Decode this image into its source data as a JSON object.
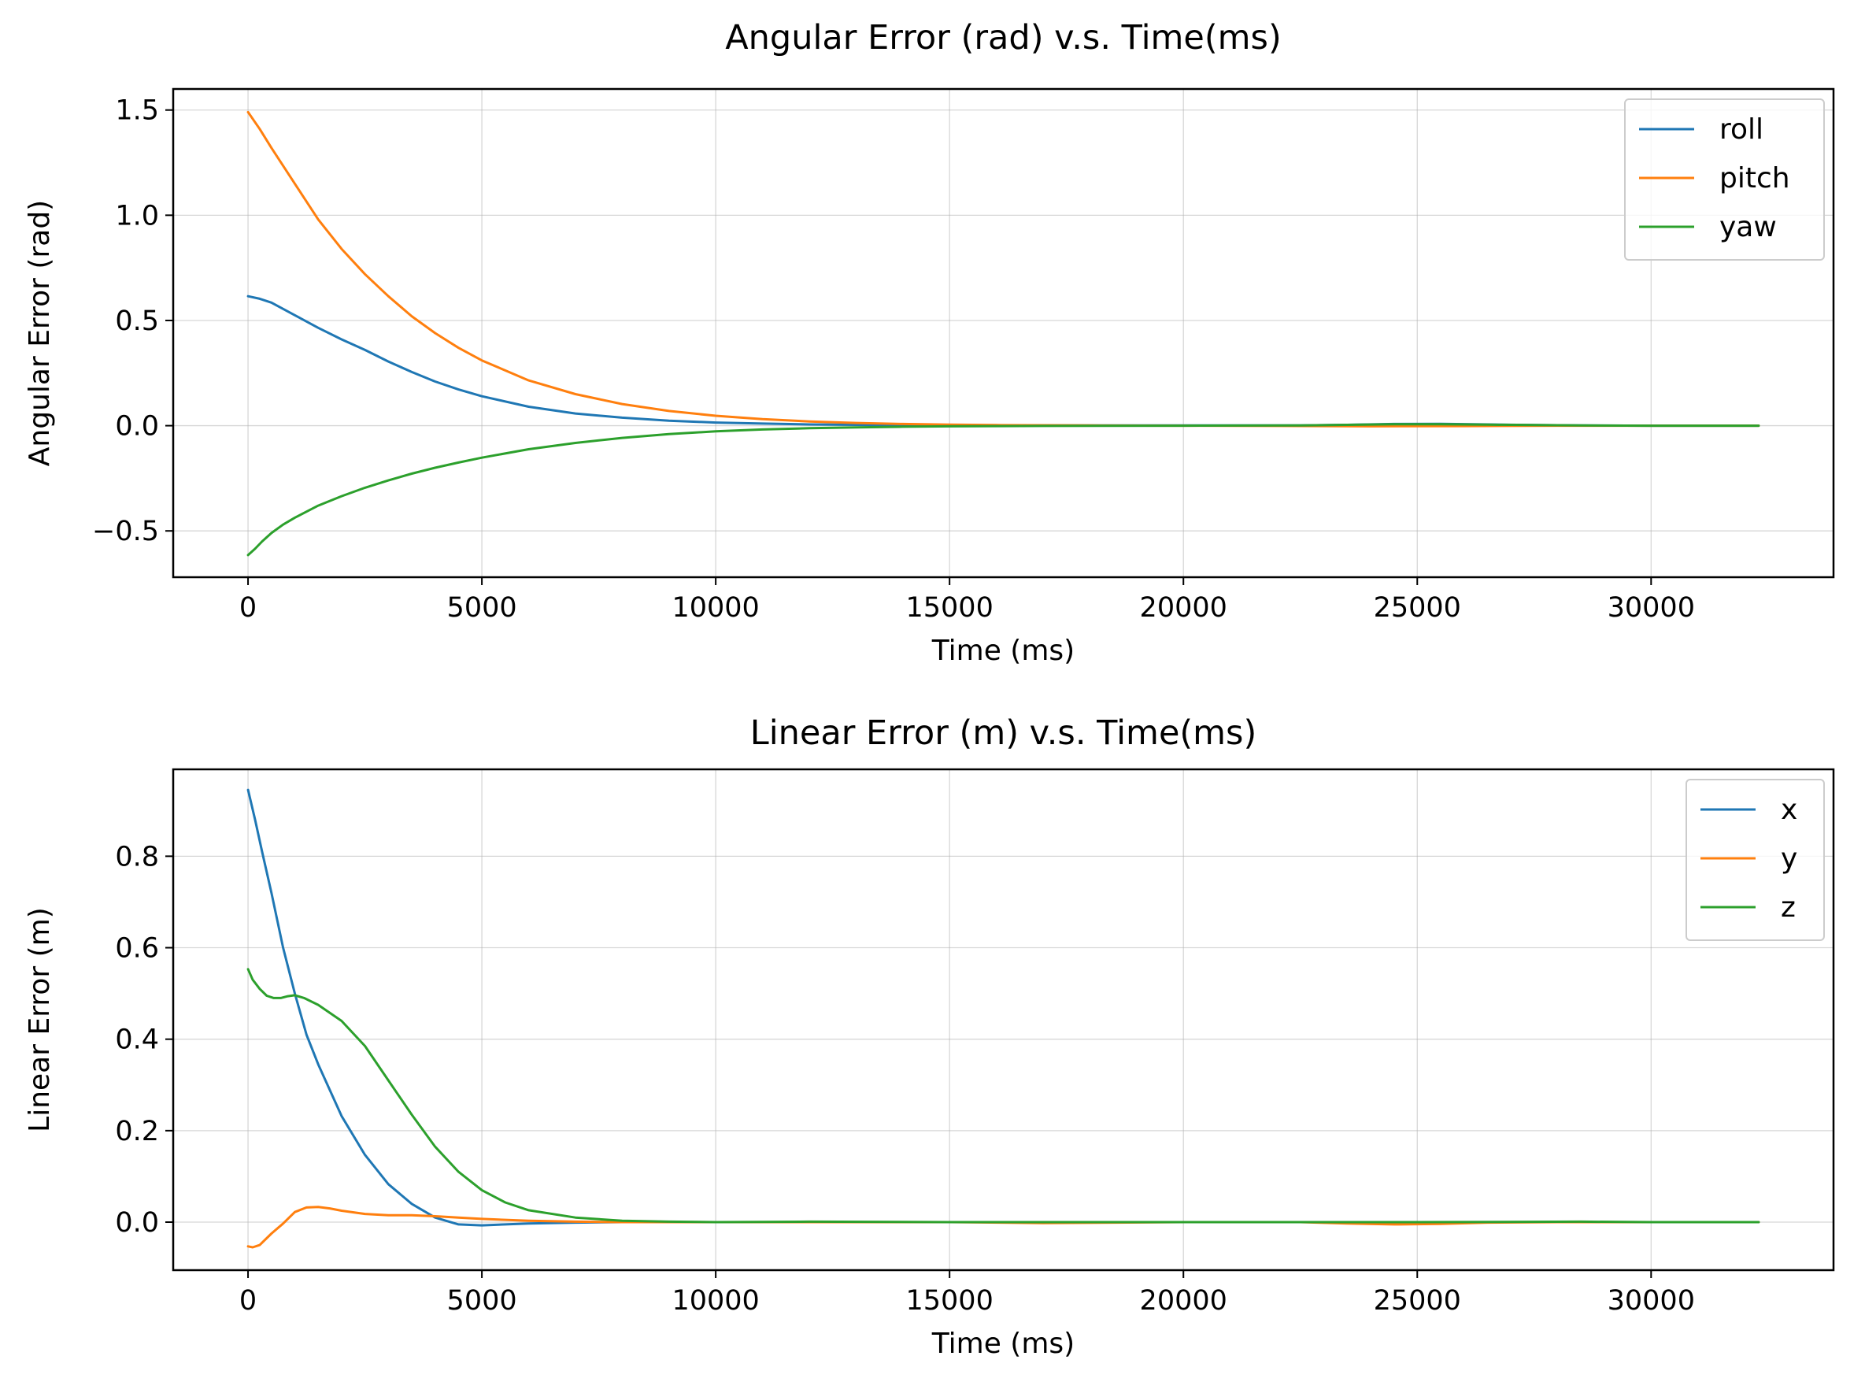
{
  "chart_data": [
    {
      "id": "angular",
      "type": "line",
      "title": "Angular Error (rad) v.s. Time(ms)",
      "xlabel": "Time (ms)",
      "ylabel": "Angular Error (rad)",
      "xlim": [
        -1600,
        33900
      ],
      "ylim": [
        -0.72,
        1.6
      ],
      "xticks": [
        0,
        5000,
        10000,
        15000,
        20000,
        25000,
        30000
      ],
      "yticks": [
        -0.5,
        0.0,
        0.5,
        1.0,
        1.5
      ],
      "ytick_labels": [
        "−0.5",
        "0.0",
        "0.5",
        "1.0",
        "1.5"
      ],
      "grid": true,
      "legend": "top-right",
      "series": [
        {
          "name": "roll",
          "color": "#1f77b4",
          "points": [
            [
              0,
              0.615
            ],
            [
              250,
              0.603
            ],
            [
              500,
              0.585
            ],
            [
              1000,
              0.525
            ],
            [
              1500,
              0.465
            ],
            [
              2000,
              0.41
            ],
            [
              2500,
              0.36
            ],
            [
              3000,
              0.305
            ],
            [
              3500,
              0.255
            ],
            [
              4000,
              0.21
            ],
            [
              4500,
              0.172
            ],
            [
              5000,
              0.14
            ],
            [
              6000,
              0.09
            ],
            [
              7000,
              0.058
            ],
            [
              8000,
              0.038
            ],
            [
              9000,
              0.024
            ],
            [
              10000,
              0.015
            ],
            [
              11000,
              0.01
            ],
            [
              12000,
              0.006
            ],
            [
              13000,
              0.004
            ],
            [
              14000,
              0.003
            ],
            [
              15000,
              0.002
            ],
            [
              16000,
              0.002
            ],
            [
              18000,
              0.001
            ],
            [
              20000,
              0.001
            ],
            [
              22500,
              0.001
            ],
            [
              23500,
              0.004
            ],
            [
              24500,
              0.008
            ],
            [
              25500,
              0.009
            ],
            [
              26500,
              0.006
            ],
            [
              27500,
              0.003
            ],
            [
              28500,
              0.001
            ],
            [
              30000,
              0.0
            ],
            [
              32300,
              0.0
            ]
          ]
        },
        {
          "name": "pitch",
          "color": "#ff7f0e",
          "points": [
            [
              0,
              1.49
            ],
            [
              250,
              1.41
            ],
            [
              500,
              1.32
            ],
            [
              1000,
              1.15
            ],
            [
              1500,
              0.98
            ],
            [
              2000,
              0.84
            ],
            [
              2500,
              0.72
            ],
            [
              3000,
              0.615
            ],
            [
              3500,
              0.52
            ],
            [
              4000,
              0.44
            ],
            [
              4500,
              0.37
            ],
            [
              5000,
              0.31
            ],
            [
              6000,
              0.215
            ],
            [
              7000,
              0.15
            ],
            [
              8000,
              0.103
            ],
            [
              9000,
              0.07
            ],
            [
              10000,
              0.047
            ],
            [
              11000,
              0.031
            ],
            [
              12000,
              0.02
            ],
            [
              13000,
              0.013
            ],
            [
              14000,
              0.008
            ],
            [
              15000,
              0.005
            ],
            [
              16000,
              0.003
            ],
            [
              18000,
              0.001
            ],
            [
              20000,
              0.0
            ],
            [
              22000,
              -0.001
            ],
            [
              24000,
              -0.003
            ],
            [
              26000,
              -0.002
            ],
            [
              28000,
              0.0
            ],
            [
              30000,
              0.0
            ],
            [
              32300,
              0.0
            ]
          ]
        },
        {
          "name": "yaw",
          "color": "#2ca02c",
          "points": [
            [
              0,
              -0.615
            ],
            [
              150,
              -0.585
            ],
            [
              300,
              -0.55
            ],
            [
              500,
              -0.51
            ],
            [
              750,
              -0.47
            ],
            [
              1000,
              -0.437
            ],
            [
              1500,
              -0.38
            ],
            [
              2000,
              -0.335
            ],
            [
              2500,
              -0.295
            ],
            [
              3000,
              -0.26
            ],
            [
              3500,
              -0.228
            ],
            [
              4000,
              -0.2
            ],
            [
              4500,
              -0.175
            ],
            [
              5000,
              -0.152
            ],
            [
              6000,
              -0.112
            ],
            [
              7000,
              -0.082
            ],
            [
              8000,
              -0.058
            ],
            [
              9000,
              -0.04
            ],
            [
              10000,
              -0.027
            ],
            [
              11000,
              -0.018
            ],
            [
              12000,
              -0.012
            ],
            [
              13000,
              -0.008
            ],
            [
              14000,
              -0.005
            ],
            [
              15000,
              -0.003
            ],
            [
              16000,
              -0.002
            ],
            [
              17000,
              -0.001
            ],
            [
              20000,
              0.0
            ],
            [
              22500,
              0.001
            ],
            [
              23500,
              0.004
            ],
            [
              24500,
              0.007
            ],
            [
              25500,
              0.007
            ],
            [
              26500,
              0.005
            ],
            [
              27500,
              0.003
            ],
            [
              28500,
              0.001
            ],
            [
              30000,
              0.0
            ],
            [
              32300,
              0.0
            ]
          ]
        }
      ]
    },
    {
      "id": "linear",
      "type": "line",
      "title": "Linear Error (m) v.s. Time(ms)",
      "xlabel": "Time (ms)",
      "ylabel": "Linear Error (m)",
      "xlim": [
        -1600,
        33900
      ],
      "ylim": [
        -0.105,
        0.99
      ],
      "xticks": [
        0,
        5000,
        10000,
        15000,
        20000,
        25000,
        30000
      ],
      "yticks": [
        0.0,
        0.2,
        0.4,
        0.6,
        0.8
      ],
      "ytick_labels": [
        "0.0",
        "0.2",
        "0.4",
        "0.6",
        "0.8"
      ],
      "grid": true,
      "legend": "top-right",
      "series": [
        {
          "name": "x",
          "color": "#1f77b4",
          "points": [
            [
              0,
              0.945
            ],
            [
              150,
              0.88
            ],
            [
              300,
              0.81
            ],
            [
              500,
              0.72
            ],
            [
              750,
              0.6
            ],
            [
              1000,
              0.5
            ],
            [
              1250,
              0.41
            ],
            [
              1500,
              0.345
            ],
            [
              2000,
              0.232
            ],
            [
              2500,
              0.147
            ],
            [
              3000,
              0.083
            ],
            [
              3500,
              0.04
            ],
            [
              4000,
              0.01
            ],
            [
              4500,
              -0.005
            ],
            [
              5000,
              -0.007
            ],
            [
              5500,
              -0.005
            ],
            [
              6000,
              -0.003
            ],
            [
              7000,
              -0.001
            ],
            [
              8000,
              0.0
            ],
            [
              10000,
              0.0
            ],
            [
              15000,
              0.0
            ],
            [
              20000,
              0.0
            ],
            [
              25000,
              0.0
            ],
            [
              30000,
              0.0
            ],
            [
              32300,
              0.0
            ]
          ]
        },
        {
          "name": "y",
          "color": "#ff7f0e",
          "points": [
            [
              0,
              -0.053
            ],
            [
              100,
              -0.055
            ],
            [
              250,
              -0.05
            ],
            [
              500,
              -0.025
            ],
            [
              750,
              -0.003
            ],
            [
              1000,
              0.022
            ],
            [
              1250,
              0.032
            ],
            [
              1500,
              0.033
            ],
            [
              1750,
              0.03
            ],
            [
              2000,
              0.025
            ],
            [
              2500,
              0.018
            ],
            [
              3000,
              0.015
            ],
            [
              3500,
              0.015
            ],
            [
              4000,
              0.013
            ],
            [
              4500,
              0.01
            ],
            [
              5000,
              0.007
            ],
            [
              6000,
              0.003
            ],
            [
              7000,
              0.001
            ],
            [
              8000,
              0.0
            ],
            [
              10000,
              0.0
            ],
            [
              12000,
              0.0
            ],
            [
              15000,
              0.0
            ],
            [
              17000,
              -0.002
            ],
            [
              20000,
              0.0
            ],
            [
              22500,
              0.0
            ],
            [
              23500,
              -0.003
            ],
            [
              24500,
              -0.005
            ],
            [
              25500,
              -0.004
            ],
            [
              26500,
              -0.001
            ],
            [
              28000,
              0.0
            ],
            [
              32300,
              0.0
            ]
          ]
        },
        {
          "name": "z",
          "color": "#2ca02c",
          "points": [
            [
              0,
              0.553
            ],
            [
              100,
              0.53
            ],
            [
              250,
              0.51
            ],
            [
              400,
              0.495
            ],
            [
              550,
              0.49
            ],
            [
              700,
              0.49
            ],
            [
              850,
              0.494
            ],
            [
              1000,
              0.496
            ],
            [
              1200,
              0.49
            ],
            [
              1500,
              0.475
            ],
            [
              2000,
              0.44
            ],
            [
              2500,
              0.385
            ],
            [
              3000,
              0.31
            ],
            [
              3500,
              0.235
            ],
            [
              4000,
              0.165
            ],
            [
              4500,
              0.11
            ],
            [
              5000,
              0.07
            ],
            [
              5500,
              0.043
            ],
            [
              6000,
              0.026
            ],
            [
              7000,
              0.01
            ],
            [
              8000,
              0.003
            ],
            [
              9000,
              0.001
            ],
            [
              10000,
              0.0
            ],
            [
              12000,
              0.001
            ],
            [
              15000,
              0.0
            ],
            [
              20000,
              0.0
            ],
            [
              25000,
              0.0
            ],
            [
              28500,
              0.001
            ],
            [
              30000,
              0.0
            ],
            [
              32300,
              0.0
            ]
          ]
        }
      ]
    }
  ]
}
